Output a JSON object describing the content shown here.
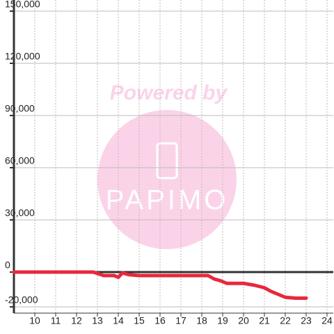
{
  "chart_data": {
    "type": "line",
    "x": [
      9,
      12.8,
      13.3,
      13.8,
      14.0,
      14.2,
      14.5,
      15.0,
      18.3,
      18.6,
      18.9,
      19.2,
      20.0,
      20.5,
      21.0,
      21.3,
      21.7,
      22.0,
      22.5,
      23.0
    ],
    "values": [
      0,
      0,
      -2000,
      -2000,
      -3000,
      -500,
      -1500,
      -2000,
      -2000,
      -4000,
      -5000,
      -6500,
      -6500,
      -7500,
      -9000,
      -11000,
      -13000,
      -14500,
      -15000,
      -15000
    ],
    "color": "#e8283c",
    "xlim": [
      9,
      24.3
    ],
    "ylim": [
      -20000,
      150000
    ],
    "xticks": [
      10,
      11,
      12,
      13,
      14,
      15,
      16,
      17,
      18,
      19,
      20,
      21,
      22,
      23,
      24
    ],
    "yticks": [
      {
        "value": -20000,
        "label": "-20,000"
      },
      0,
      {
        "value": 30000,
        "label": "30,000"
      },
      {
        "value": 60000,
        "label": "60,000"
      },
      {
        "value": 90000,
        "label": "90,000"
      },
      {
        "value": 120000,
        "label": "120,000"
      },
      {
        "value": 150000,
        "label": "150,000"
      }
    ],
    "grid": true,
    "watermark": {
      "caption": "Powered by",
      "logo": "PAPIMO"
    }
  }
}
